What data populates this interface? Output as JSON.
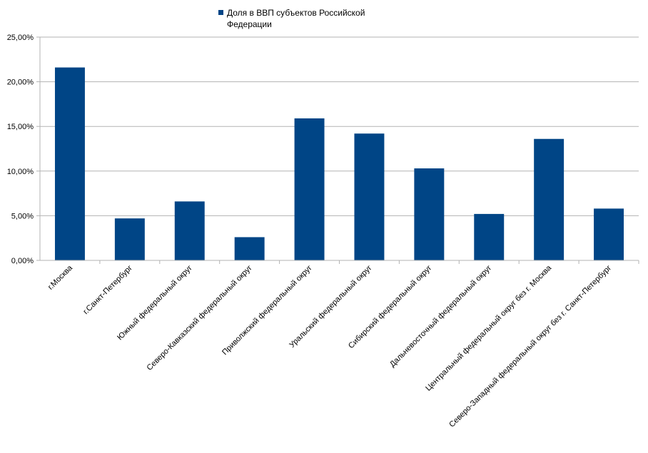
{
  "chart_data": {
    "type": "bar",
    "title": "",
    "xlabel": "",
    "ylabel": "",
    "legend_position": "top",
    "grid": true,
    "ylim": [
      0,
      25
    ],
    "y_ticks": [
      0,
      5,
      10,
      15,
      20,
      25
    ],
    "y_tick_labels": [
      "0,00%",
      "5,00%",
      "10,00%",
      "15,00%",
      "20,00%",
      "25,00%"
    ],
    "categories": [
      "г.Москва",
      "г.Санкт-Петербург",
      "Южный федеральный округ",
      "Северо-Кавказский федеральный округ",
      "Приволжский федеральный округ",
      "Уральский федеральный округ",
      "Сибирский федеральный округ",
      "Дальневосточный федеральный округ",
      "Центральный федеральный округ без г. Москва",
      "Северо-Западный федеральный округ без г. Санкт-Петербург"
    ],
    "series": [
      {
        "name": "Доля в ВВП субъектов Российской Федерации",
        "color": "#004586",
        "values": [
          21.6,
          4.7,
          6.6,
          2.6,
          15.9,
          14.2,
          10.3,
          5.2,
          13.6,
          5.8
        ]
      }
    ]
  }
}
